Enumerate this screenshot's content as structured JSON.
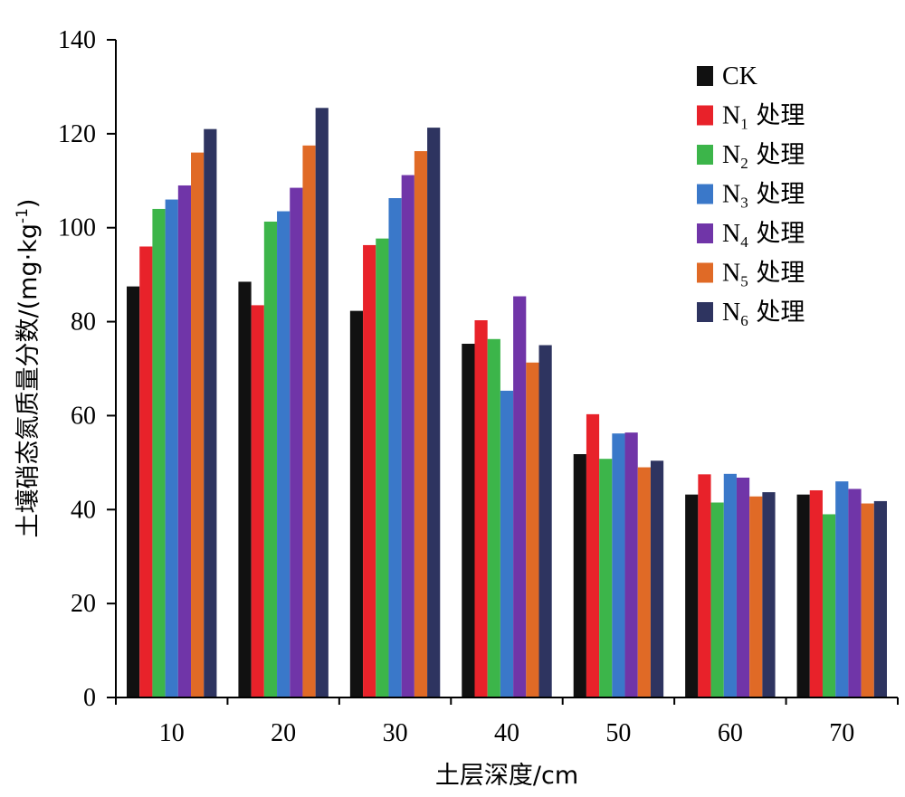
{
  "chart_data": {
    "type": "bar",
    "title": "",
    "xlabel": "土层深度/cm",
    "ylabel": "土壤硝态氮质量分数/(mg·kg",
    "ylabel_sup": "-1",
    "ylabel_close": ")",
    "ylim": [
      0,
      140
    ],
    "yticks": [
      "0",
      "20",
      "40",
      "60",
      "80",
      "100",
      "120",
      "140"
    ],
    "categories": [
      "10",
      "20",
      "30",
      "40",
      "50",
      "60",
      "70"
    ],
    "legend_position": "top-right",
    "series": [
      {
        "name": "CK",
        "base": "CK",
        "sub": "",
        "suffix": "",
        "color": "#111111",
        "values": [
          87.5,
          88.5,
          82.3,
          75.3,
          51.8,
          43.2,
          43.2
        ]
      },
      {
        "name": "N1 处理",
        "base": "N",
        "sub": "1",
        "suffix": " 处理",
        "color": "#e8222a",
        "values": [
          96.0,
          83.5,
          96.3,
          80.3,
          60.3,
          47.5,
          44.1
        ]
      },
      {
        "name": "N2 处理",
        "base": "N",
        "sub": "2",
        "suffix": " 处理",
        "color": "#3cb54a",
        "values": [
          104.0,
          101.3,
          97.7,
          76.3,
          50.8,
          41.5,
          39.0
        ]
      },
      {
        "name": "N3 处理",
        "base": "N",
        "sub": "3",
        "suffix": " 处理",
        "color": "#3a78c9",
        "values": [
          106.0,
          103.5,
          106.3,
          65.3,
          56.2,
          47.6,
          46.0
        ]
      },
      {
        "name": "N4 处理",
        "base": "N",
        "sub": "4",
        "suffix": " 处理",
        "color": "#7035a8",
        "values": [
          109.0,
          108.5,
          111.2,
          85.4,
          56.4,
          46.8,
          44.4
        ]
      },
      {
        "name": "N5 处理",
        "base": "N",
        "sub": "5",
        "suffix": " 处理",
        "color": "#e06a26",
        "values": [
          116.0,
          117.5,
          116.3,
          71.3,
          49.0,
          42.8,
          41.3
        ]
      },
      {
        "name": "N6 处理",
        "base": "N",
        "sub": "6",
        "suffix": " 处理",
        "color": "#2e3460",
        "values": [
          121.0,
          125.5,
          121.3,
          75.0,
          50.4,
          43.7,
          41.8
        ]
      }
    ]
  }
}
